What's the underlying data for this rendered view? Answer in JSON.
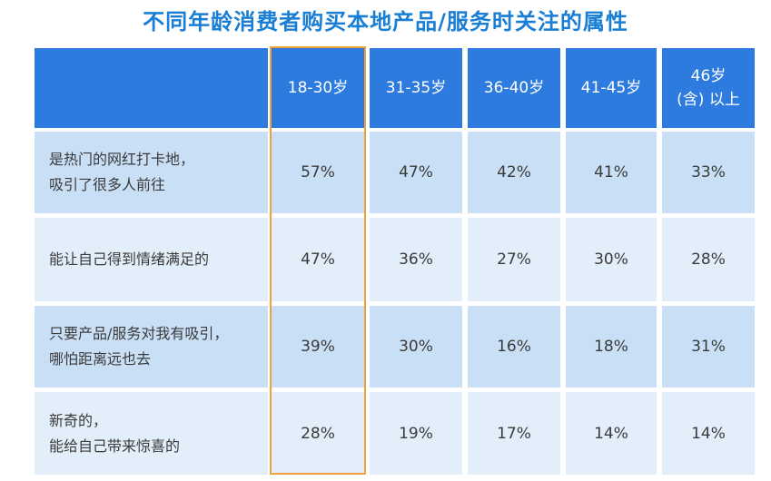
{
  "chart_data": {
    "type": "table",
    "title": "不同年龄消费者购买本地产品/服务时关注的属性",
    "columns": [
      "18-30岁",
      "31-35岁",
      "36-40岁",
      "41-45岁",
      [
        "46岁",
        "(含) 以上"
      ]
    ],
    "rows": [
      {
        "label": [
          "是热门的网红打卡地，",
          "吸引了很多人前往"
        ],
        "values": [
          "57%",
          "47%",
          "42%",
          "41%",
          "33%"
        ]
      },
      {
        "label": [
          "能让自己得到情绪满足的"
        ],
        "values": [
          "47%",
          "36%",
          "27%",
          "30%",
          "28%"
        ]
      },
      {
        "label": [
          "只要产品/服务对我有吸引，",
          "哪怕距离远也去"
        ],
        "values": [
          "39%",
          "30%",
          "16%",
          "18%",
          "31%"
        ]
      },
      {
        "label": [
          "新奇的，",
          "能给自己带来惊喜的"
        ],
        "values": [
          "28%",
          "19%",
          "17%",
          "14%",
          "14%"
        ]
      }
    ],
    "highlighted_column": "18-30岁"
  },
  "colors": {
    "header": "#2e7be0",
    "row_dark": "#c9dff6",
    "row_light": "#e2eefa",
    "highlight_border": "#f0a23a",
    "title": "#1a7fd4"
  }
}
